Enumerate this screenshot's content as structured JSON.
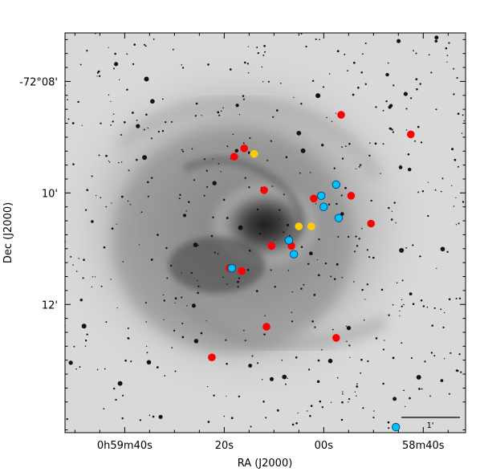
{
  "chart_data": {
    "type": "scatter",
    "title": "",
    "xlabel": "RA (J2000)",
    "ylabel": "Dec (J2000)",
    "x_axis": {
      "unit": "s of RA (offset from 0h59m00s; negative = 0h58m..)",
      "range": [
        52.0,
        -28.5
      ],
      "ticks": [
        {
          "value": 40,
          "label_parts": [
            [
              "0",
              ""
            ],
            [
              "h",
              ""
            ],
            [
              "59",
              ""
            ],
            [
              "m",
              ""
            ],
            [
              "40",
              ""
            ],
            [
              "s",
              ""
            ]
          ],
          "label": "0h59m40s"
        },
        {
          "value": 20,
          "label": "20s"
        },
        {
          "value": 0,
          "label": "00s"
        },
        {
          "value": -20,
          "label": "58m40s"
        },
        {
          "value": -40,
          "label": "20s"
        }
      ]
    },
    "y_axis": {
      "unit": "arcmin below -72°",
      "range": [
        7.13,
        14.3
      ],
      "ticks": [
        {
          "value": 8,
          "label": "-72°08'"
        },
        {
          "value": 10,
          "label": "10'"
        },
        {
          "value": 12,
          "label": "12'"
        }
      ]
    },
    "scale_bar_label": "1'",
    "series": [
      {
        "color": "#ff0000",
        "points": [
          {
            "x": -3.5,
            "y": 8.6
          },
          {
            "x": -17.5,
            "y": 8.95
          },
          {
            "x": 16.0,
            "y": 9.2
          },
          {
            "x": 18.0,
            "y": 9.35
          },
          {
            "x": 12.0,
            "y": 9.95
          },
          {
            "x": 2.0,
            "y": 10.1
          },
          {
            "x": -5.5,
            "y": 10.05
          },
          {
            "x": -9.5,
            "y": 10.55
          },
          {
            "x": 10.5,
            "y": 10.95
          },
          {
            "x": 6.5,
            "y": 10.95
          },
          {
            "x": 19.0,
            "y": 11.35
          },
          {
            "x": 16.5,
            "y": 11.4
          },
          {
            "x": 11.5,
            "y": 12.4
          },
          {
            "x": -2.5,
            "y": 12.6
          },
          {
            "x": 22.5,
            "y": 12.95
          }
        ]
      },
      {
        "color": "#00bfff",
        "points": [
          {
            "x": -2.5,
            "y": 9.85
          },
          {
            "x": 0.5,
            "y": 10.05
          },
          {
            "x": 0.0,
            "y": 10.25
          },
          {
            "x": -3.0,
            "y": 10.45
          },
          {
            "x": 7.0,
            "y": 10.85
          },
          {
            "x": 6.0,
            "y": 11.1
          },
          {
            "x": 18.5,
            "y": 11.35
          },
          {
            "x": -14.5,
            "y": 14.2
          }
        ]
      },
      {
        "color": "#ffcc00",
        "points": [
          {
            "x": 14.0,
            "y": 9.3
          },
          {
            "x": 5.0,
            "y": 10.6
          },
          {
            "x": 2.5,
            "y": 10.6
          }
        ]
      }
    ]
  }
}
